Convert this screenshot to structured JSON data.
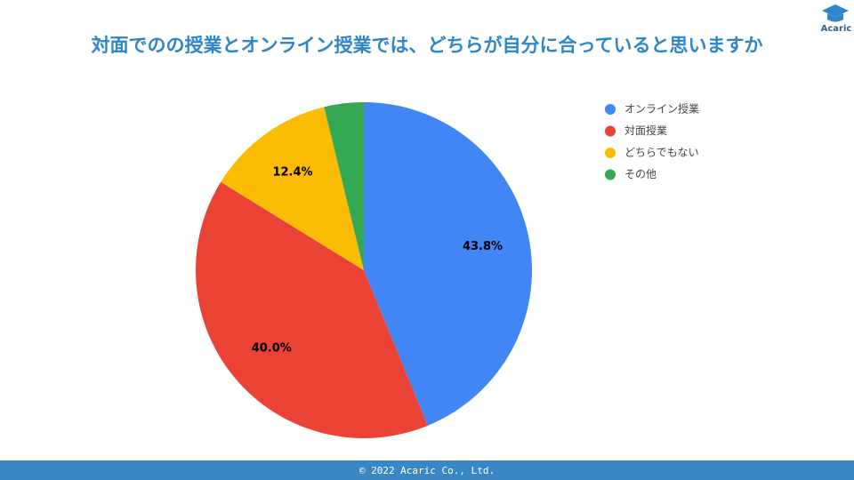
{
  "chart_data": {
    "type": "pie",
    "title": "対面でのの授業とオンライン授業では、どちらが自分に合っていると思いますか",
    "categories": [
      "オンライン授業",
      "対面授業",
      "どちらでもない",
      "その他"
    ],
    "values": [
      43.8,
      40.0,
      12.4,
      3.8
    ],
    "value_labels": [
      "43.8%",
      "40.0%",
      "12.4%",
      null
    ],
    "colors": [
      "#4285f4",
      "#ea4335",
      "#fbbc04",
      "#34a853"
    ],
    "legend": "top-right"
  },
  "logo": "Acaric",
  "footer": "© 2022 Acaric Co., Ltd."
}
